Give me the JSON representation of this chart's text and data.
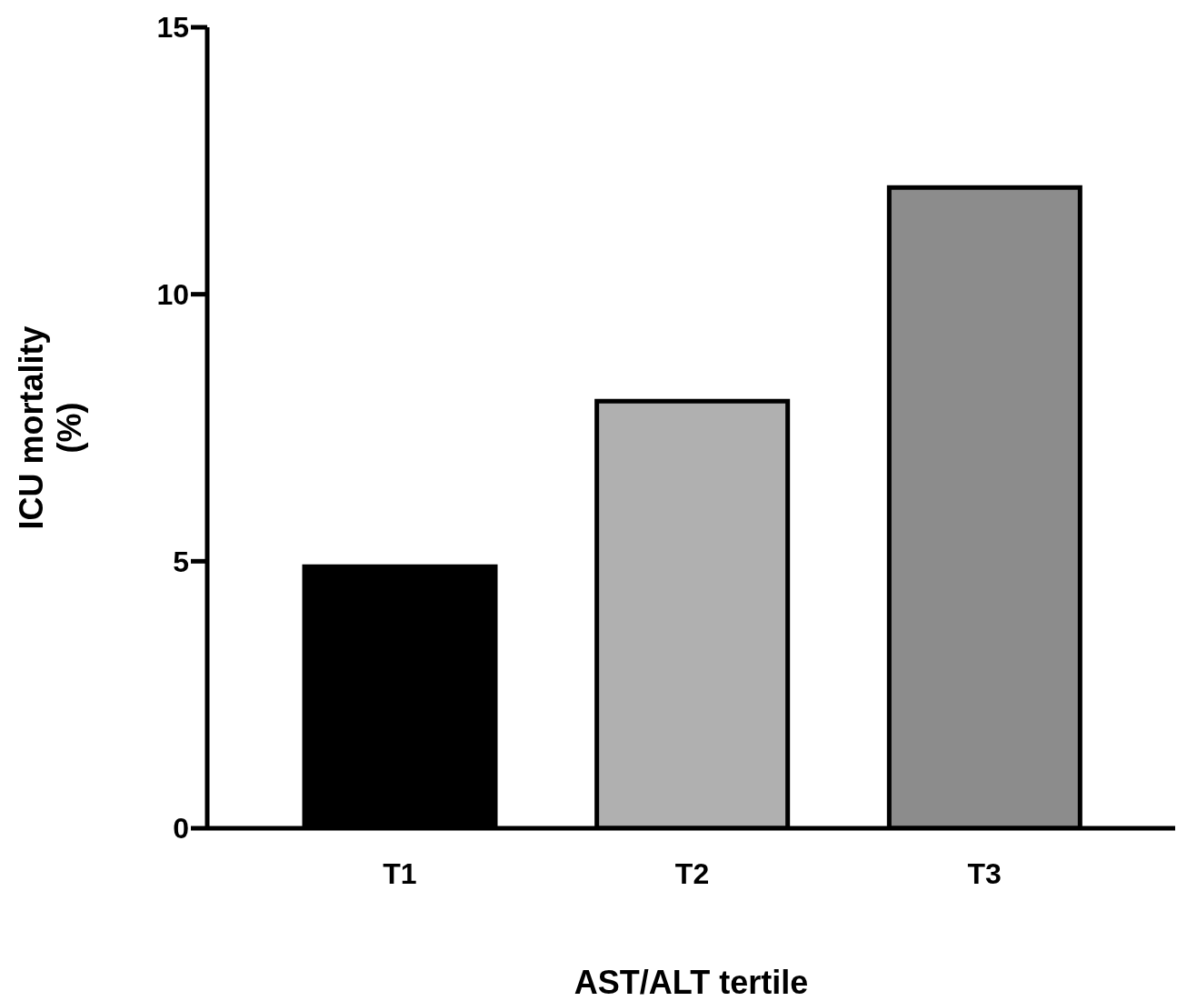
{
  "chart_data": {
    "type": "bar",
    "xlabel": "AST/ALT tertile",
    "ylabel": "ICU mortality (%)",
    "categories": [
      "T1",
      "T2",
      "T3"
    ],
    "values": [
      4.9,
      8.0,
      12.0
    ],
    "colors": [
      "#000000",
      "#b0b0b0",
      "#8c8c8c"
    ],
    "ylim": [
      0,
      15
    ],
    "yticks": [
      0,
      5,
      10,
      15
    ],
    "grid": false,
    "legend": false
  }
}
